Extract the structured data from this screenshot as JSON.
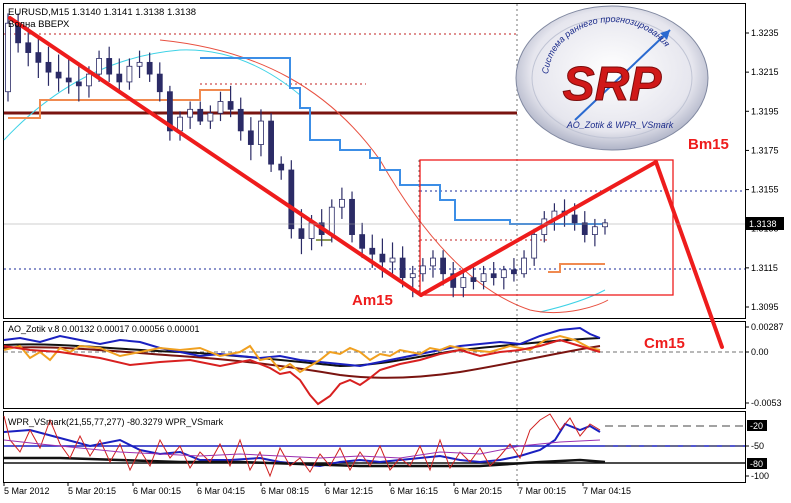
{
  "header": {
    "symbol_info": "EURUSD,M15  1.3140 1.3141 1.3138 1.3138",
    "indicator_name": "Волна ВВЕРХ"
  },
  "sub1": {
    "label": "AO_Zotik v.8 0.00132 0.00017 0.00056 0.00001"
  },
  "sub2": {
    "label": "WPR_VSmark(21,55,77,277) -80.3279  WPR_VSmark"
  },
  "logo": {
    "text": "SRP",
    "arc_top": "Система раннего прогнозирования",
    "arc_bottom": "AO_Zotik & WPR_VSmark"
  },
  "annotations": {
    "a": "Am15",
    "b": "Bm15",
    "c": "Cm15"
  },
  "colors": {
    "background": "#ffffff",
    "candles": "#2b2b66",
    "wave_line": "#ee1c1c",
    "box": "#ee1c1c",
    "blue_step": "#3c8ee6",
    "orange_step": "#f08a50",
    "brown_line": "#7a1410",
    "cyan_curve": "#3ed2e6",
    "red_curve": "#e85040",
    "price_tag_bg": "#000000"
  },
  "chart_data": [
    {
      "type": "candlestick",
      "title": "EURUSD,M15",
      "y_ticks": [
        "1.3235",
        "1.3215",
        "1.3195",
        "1.3175",
        "1.3155",
        "1.3135",
        "1.3115",
        "1.3095"
      ],
      "ylim": [
        1.3085,
        1.325
      ],
      "x_ticks": [
        "5 Mar 2012",
        "5 Mar 20:15",
        "6 Mar 00:15",
        "6 Mar 04:15",
        "6 Mar 08:15",
        "6 Mar 12:15",
        "6 Mar 16:15",
        "6 Mar 20:15",
        "7 Mar 00:15",
        "7 Mar 04:15"
      ],
      "current_price": "1.3138",
      "ohlc": [
        [
          1.3205,
          1.3245,
          1.32,
          1.324
        ],
        [
          1.324,
          1.3245,
          1.3225,
          1.323
        ],
        [
          1.323,
          1.3238,
          1.3218,
          1.3225
        ],
        [
          1.3225,
          1.3232,
          1.3212,
          1.322
        ],
        [
          1.322,
          1.3228,
          1.3208,
          1.3215
        ],
        [
          1.3215,
          1.3224,
          1.3205,
          1.3212
        ],
        [
          1.3212,
          1.3222,
          1.3204,
          1.321
        ],
        [
          1.321,
          1.322,
          1.32,
          1.3208
        ],
        [
          1.3208,
          1.3218,
          1.3202,
          1.3214
        ],
        [
          1.3214,
          1.3226,
          1.321,
          1.3222
        ],
        [
          1.3222,
          1.3228,
          1.321,
          1.3214
        ],
        [
          1.3214,
          1.3222,
          1.3206,
          1.321
        ],
        [
          1.321,
          1.3222,
          1.3206,
          1.3218
        ],
        [
          1.3218,
          1.3226,
          1.3212,
          1.322
        ],
        [
          1.322,
          1.3225,
          1.321,
          1.3214
        ],
        [
          1.3214,
          1.322,
          1.32,
          1.3205
        ],
        [
          1.3205,
          1.3208,
          1.318,
          1.3185
        ],
        [
          1.3185,
          1.3195,
          1.318,
          1.3192
        ],
        [
          1.3192,
          1.32,
          1.3186,
          1.3196
        ],
        [
          1.3196,
          1.32,
          1.3188,
          1.319
        ],
        [
          1.319,
          1.3198,
          1.3186,
          1.3194
        ],
        [
          1.3194,
          1.3205,
          1.319,
          1.32
        ],
        [
          1.32,
          1.3208,
          1.3192,
          1.3196
        ],
        [
          1.3196,
          1.3202,
          1.318,
          1.3185
        ],
        [
          1.3185,
          1.3192,
          1.317,
          1.3178
        ],
        [
          1.3178,
          1.3196,
          1.3172,
          1.319
        ],
        [
          1.319,
          1.3194,
          1.3164,
          1.3168
        ],
        [
          1.3168,
          1.3172,
          1.316,
          1.3165
        ],
        [
          1.3165,
          1.317,
          1.313,
          1.3135
        ],
        [
          1.3135,
          1.3145,
          1.3122,
          1.313
        ],
        [
          1.313,
          1.3142,
          1.3124,
          1.3138
        ],
        [
          1.3138,
          1.3145,
          1.3126,
          1.3132
        ],
        [
          1.3132,
          1.315,
          1.3128,
          1.3146
        ],
        [
          1.3146,
          1.3156,
          1.314,
          1.315
        ],
        [
          1.315,
          1.3154,
          1.3128,
          1.3132
        ],
        [
          1.3132,
          1.3138,
          1.312,
          1.3125
        ],
        [
          1.3125,
          1.3132,
          1.3115,
          1.3122
        ],
        [
          1.3122,
          1.313,
          1.311,
          1.3118
        ],
        [
          1.3118,
          1.3128,
          1.3112,
          1.312
        ],
        [
          1.312,
          1.3126,
          1.3105,
          1.311
        ],
        [
          1.311,
          1.3116,
          1.31,
          1.3112
        ],
        [
          1.3112,
          1.312,
          1.3108,
          1.3116
        ],
        [
          1.3116,
          1.3124,
          1.311,
          1.312
        ],
        [
          1.312,
          1.3124,
          1.3106,
          1.3112
        ],
        [
          1.3112,
          1.3118,
          1.31,
          1.3105
        ],
        [
          1.3105,
          1.3114,
          1.31,
          1.311
        ],
        [
          1.311,
          1.3116,
          1.3104,
          1.3108
        ],
        [
          1.3108,
          1.3116,
          1.3104,
          1.3112
        ],
        [
          1.3112,
          1.3118,
          1.3106,
          1.311
        ],
        [
          1.311,
          1.3116,
          1.3104,
          1.3114
        ],
        [
          1.3114,
          1.312,
          1.3108,
          1.3112
        ],
        [
          1.3112,
          1.3124,
          1.311,
          1.312
        ],
        [
          1.312,
          1.3135,
          1.3116,
          1.3132
        ],
        [
          1.3132,
          1.3144,
          1.3128,
          1.314
        ],
        [
          1.314,
          1.3148,
          1.3134,
          1.3144
        ],
        [
          1.3144,
          1.315,
          1.3136,
          1.3142
        ],
        [
          1.3142,
          1.3148,
          1.3134,
          1.3138
        ],
        [
          1.3138,
          1.3144,
          1.3128,
          1.3132
        ],
        [
          1.3132,
          1.314,
          1.3126,
          1.3136
        ],
        [
          1.3136,
          1.314,
          1.3132,
          1.3138
        ]
      ],
      "series": [
        {
          "values": [
            1.3245,
            1.323,
            1.3215,
            1.32,
            1.3185,
            1.317,
            1.3155,
            1.314,
            1.3125,
            1.311,
            1.31
          ]
        },
        {
          "values": [
            1.31,
            1.3108,
            1.3115,
            1.3122,
            1.313,
            1.3138,
            1.3146,
            1.3153,
            1.316,
            1.3168
          ]
        }
      ],
      "annotations": [
        "Am15",
        "Bm15",
        "Cm15"
      ]
    },
    {
      "type": "line",
      "title": "AO_Zotik v.8",
      "values_shown": [
        "0.00132",
        "0.00017",
        "0.00056",
        "0.00001"
      ],
      "y_ticks": [
        "0.00287",
        "0.00",
        "-0.0053"
      ],
      "ylim": [
        -0.0055,
        0.003
      ]
    },
    {
      "type": "line",
      "title": "WPR_VSmark(21,55,77,277)",
      "value_shown": "-80.3279",
      "y_ticks": [
        "-20",
        "-50",
        "-80",
        "-100"
      ],
      "ylim": [
        -100,
        0
      ]
    }
  ]
}
